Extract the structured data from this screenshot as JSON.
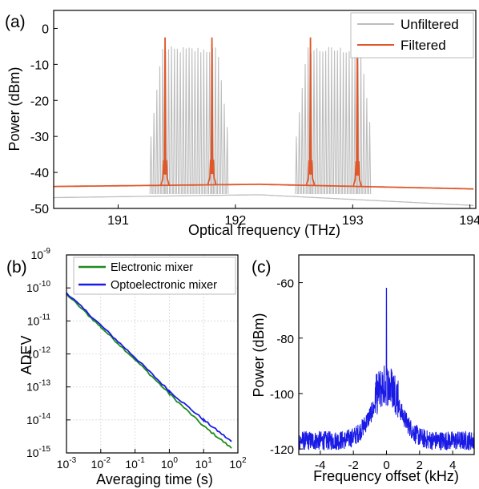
{
  "colors": {
    "unfiltered": "#bdbdbd",
    "filtered": "#e0572a",
    "electronic": "#1f8a1f",
    "optoelectronic": "#1a1ae6",
    "spectrum": "#1a1ae6",
    "grid": "#d6d6d6"
  },
  "chart_data": [
    {
      "panel_label": "(a)",
      "type": "line",
      "xlabel": "Optical frequency (THz)",
      "ylabel": "Power (dBm)",
      "xlim": [
        190.45,
        194.05
      ],
      "ylim": [
        -50,
        5
      ],
      "x_ticks": [
        "191",
        "192",
        "193",
        "194"
      ],
      "y_ticks": [
        "0",
        "-10",
        "-20",
        "-30",
        "-40",
        "-50"
      ],
      "grid": false,
      "legend_position": "top-right",
      "series": [
        {
          "name": "Unfiltered",
          "floor_dBm": [
            [
              190.45,
              -47.0
            ],
            [
              192.2,
              -46.2
            ],
            [
              194.05,
              -49.2
            ]
          ],
          "comb_groups": [
            {
              "start": 191.28,
              "end": 191.94,
              "spacing": 0.025,
              "peak_dBm": -6,
              "edge_dBm": -30
            },
            {
              "start": 192.52,
              "end": 193.16,
              "spacing": 0.025,
              "peak_dBm": -6,
              "edge_dBm": -30
            }
          ],
          "lines": [
            {
              "x": 191.4,
              "y": -2.5
            },
            {
              "x": 191.8,
              "y": -2.5
            },
            {
              "x": 192.64,
              "y": -2.5
            },
            {
              "x": 193.04,
              "y": -3.5
            }
          ]
        },
        {
          "name": "Filtered",
          "floor_dBm": [
            [
              190.45,
              -43.9
            ],
            [
              192.2,
              -43.3
            ],
            [
              194.05,
              -44.6
            ]
          ],
          "lines": [
            {
              "x": 191.4,
              "y": -2.5
            },
            {
              "x": 191.8,
              "y": -2.5
            },
            {
              "x": 192.64,
              "y": -2.5
            },
            {
              "x": 193.04,
              "y": -3.5
            }
          ]
        }
      ]
    },
    {
      "panel_label": "(b)",
      "type": "line",
      "xlabel": "Averaging time (s)",
      "ylabel": "ADEV",
      "xscale": "log",
      "yscale": "log",
      "xlim": [
        0.001,
        100
      ],
      "ylim": [
        1e-15,
        1e-09
      ],
      "x_ticks": [
        {
          "base": "10",
          "exp": "-3"
        },
        {
          "base": "10",
          "exp": "-2"
        },
        {
          "base": "10",
          "exp": "-1"
        },
        {
          "base": "10",
          "exp": "0"
        },
        {
          "base": "10",
          "exp": "1"
        },
        {
          "base": "10",
          "exp": "2"
        }
      ],
      "y_ticks": [
        {
          "base": "10",
          "exp": "-9"
        },
        {
          "base": "10",
          "exp": "-10"
        },
        {
          "base": "10",
          "exp": "-11"
        },
        {
          "base": "10",
          "exp": "-12"
        },
        {
          "base": "10",
          "exp": "-13"
        },
        {
          "base": "10",
          "exp": "-14"
        },
        {
          "base": "10",
          "exp": "-15"
        }
      ],
      "grid": true,
      "legend_position": "top-right",
      "series": [
        {
          "name": "Electronic mixer",
          "points": [
            [
              0.001,
              6.5e-11
            ],
            [
              0.01,
              6.5e-12
            ],
            [
              0.1,
              6.8e-13
            ],
            [
              1,
              6.2e-14
            ],
            [
              10,
              6.5e-15
            ],
            [
              65,
              1.4e-15
            ]
          ]
        },
        {
          "name": "Optoelectronic mixer",
          "points": [
            [
              0.001,
              7.2e-11
            ],
            [
              0.01,
              7.4e-12
            ],
            [
              0.1,
              7.8e-13
            ],
            [
              1,
              7.5e-14
            ],
            [
              10,
              1e-14
            ],
            [
              65,
              2.2e-15
            ]
          ]
        }
      ]
    },
    {
      "panel_label": "(c)",
      "type": "line",
      "xlabel": "Frequency offset (kHz)",
      "ylabel": "Power (dBm)",
      "xlim": [
        -5.3,
        5.3
      ],
      "ylim": [
        -122,
        -50
      ],
      "x_ticks": [
        "-4",
        "-2",
        "0",
        "2",
        "4"
      ],
      "y_ticks": [
        "-60",
        "-80",
        "-100",
        "-120"
      ],
      "grid": false,
      "series": [
        {
          "peak": {
            "x": 0,
            "y": -62
          },
          "noise_floor_dBm": -117,
          "pedestal_dBm": -100,
          "pedestal_halfwidth_khz": 1.6,
          "noise_pp_dB": 7
        }
      ]
    }
  ]
}
